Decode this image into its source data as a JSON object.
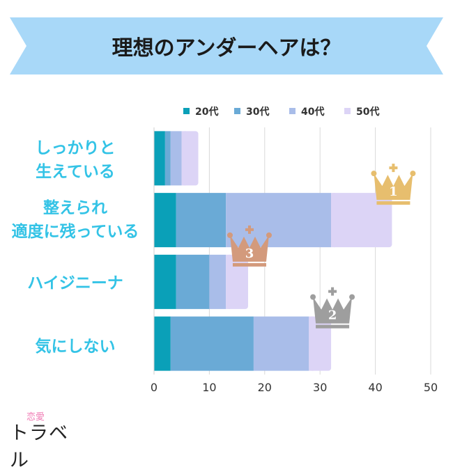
{
  "chart_data": {
    "type": "bar",
    "orientation": "horizontal",
    "stacked": true,
    "title": "理想のアンダーヘアは？",
    "categories": [
      [
        "しっかりと",
        "生えている"
      ],
      [
        "整えられ",
        "適度に残っている"
      ],
      [
        "ハイジニーナ"
      ],
      [
        "気にしない"
      ]
    ],
    "series": [
      {
        "name": "20代",
        "color": "#0aa0b8",
        "values": [
          2,
          4,
          4,
          3
        ]
      },
      {
        "name": "30代",
        "color": "#6aaad6",
        "values": [
          1,
          9,
          6,
          15
        ]
      },
      {
        "name": "40代",
        "color": "#a9bde9",
        "values": [
          2,
          19,
          3,
          10
        ]
      },
      {
        "name": "50代",
        "color": "#dcd4f6",
        "values": [
          3,
          11,
          4,
          4
        ]
      }
    ],
    "xlim": [
      0,
      50
    ],
    "xticks": [
      0,
      10,
      20,
      30,
      40,
      50
    ],
    "grid": true,
    "legend_position": "top",
    "rank_badges": [
      {
        "category_index": 1,
        "rank": "1",
        "color": "#e7be6e"
      },
      {
        "category_index": 3,
        "rank": "2",
        "color": "#9e9e9e"
      },
      {
        "category_index": 2,
        "rank": "3",
        "color": "#d39a7c"
      }
    ]
  },
  "colors": {
    "banner": "#a8d8f8",
    "label_text": "#33c3e6"
  },
  "logo": {
    "small": "恋愛",
    "main": "トラベル"
  }
}
